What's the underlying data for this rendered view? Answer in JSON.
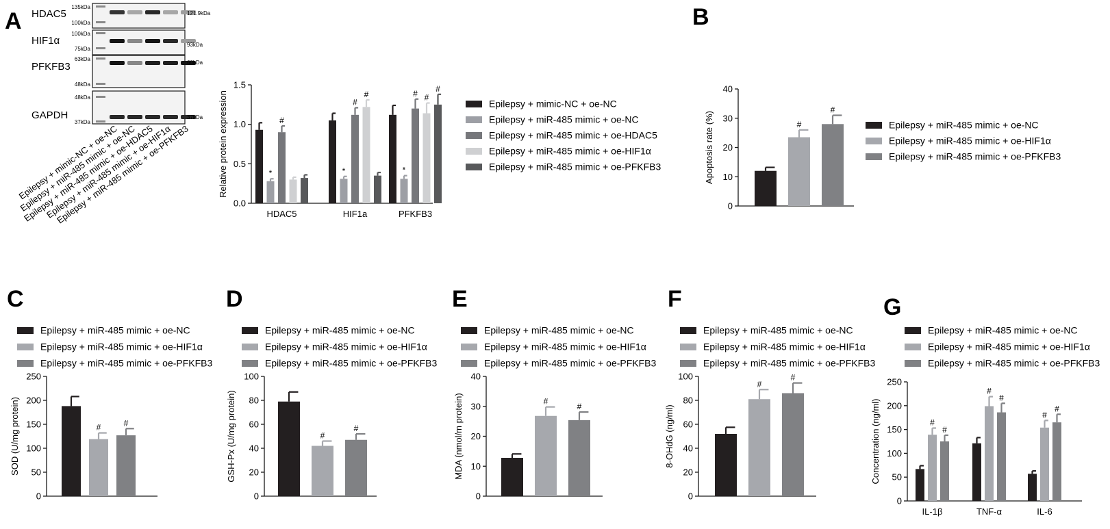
{
  "panel_letters": [
    "A",
    "B",
    "C",
    "D",
    "E",
    "F",
    "G"
  ],
  "colors": {
    "s1": "#231f20",
    "s2": "#9d9fa5",
    "s3": "#76777b",
    "s4": "#cfd0d2",
    "s5": "#58595b",
    "b1": "#231f20",
    "b2": "#a6a8ad",
    "b3": "#808184"
  },
  "western_blot": {
    "proteins": [
      {
        "name": "HDAC5",
        "markers": [
          "135kDa",
          "100kDa"
        ],
        "size": "121.9kDa"
      },
      {
        "name": "HIF1α",
        "markers": [
          "100kDa",
          "75kDa"
        ],
        "size": "93kDa"
      },
      {
        "name": "PFKFB3",
        "markers": [
          "63kDa",
          "48kDa"
        ],
        "size": "60kDa"
      },
      {
        "name": "GAPDH",
        "markers": [
          "48kDa",
          "37kDa"
        ],
        "size": "37kDa"
      }
    ],
    "lanes": [
      "Epilepsy + mimic-NC + oe-NC",
      "Epilepsy + miR-485 mimic + oe-NC",
      "Epilepsy + miR-485 mimic + oe-HDAC5",
      "Epilepsy + miR-485 mimic + oe-HIF1α",
      "Epilepsy + miR-485 mimic + oe-PFKFB3"
    ],
    "band_intensity": {
      "HDAC5": [
        0.85,
        0.3,
        0.9,
        0.3,
        0.35
      ],
      "HIF1α": [
        1.0,
        0.45,
        1.0,
        0.9,
        0.35
      ],
      "PFKFB3": [
        1.0,
        0.45,
        0.95,
        0.95,
        1.0
      ],
      "GAPDH": [
        0.9,
        0.9,
        0.9,
        0.9,
        0.9
      ]
    }
  },
  "chart_data": [
    {
      "id": "A",
      "type": "bar",
      "categories": [
        "HDAC5",
        "HIF1a",
        "PFKFB3"
      ],
      "ylabel": "Relative protein expression",
      "ylim": [
        0,
        1.5
      ],
      "yticks": [
        "0.0",
        "0.5",
        "1.0",
        "1.5"
      ],
      "legend": "right",
      "series": [
        {
          "name": "Epilepsy + mimic-NC + oe-NC",
          "values": [
            0.93,
            1.05,
            1.12
          ],
          "errors": [
            0.09,
            0.09,
            0.12
          ],
          "marks": [
            "",
            "",
            ""
          ]
        },
        {
          "name": "Epilepsy + miR-485 mimic + oe-NC",
          "values": [
            0.28,
            0.31,
            0.31
          ],
          "errors": [
            0.03,
            0.03,
            0.04
          ],
          "marks": [
            "*",
            "*",
            "*"
          ]
        },
        {
          "name": "Epilepsy + miR-485 mimic + oe-HDAC5",
          "values": [
            0.9,
            1.12,
            1.2
          ],
          "errors": [
            0.08,
            0.09,
            0.12
          ],
          "marks": [
            "#",
            "#",
            "#"
          ]
        },
        {
          "name": "Epilepsy + miR-485 mimic + oe-HIF1α",
          "values": [
            0.3,
            1.22,
            1.14
          ],
          "errors": [
            0.03,
            0.09,
            0.13
          ],
          "marks": [
            "",
            "#",
            "#"
          ]
        },
        {
          "name": "Epilepsy + miR-485 mimic + oe-PFKFB3",
          "values": [
            0.32,
            0.35,
            1.25
          ],
          "errors": [
            0.04,
            0.04,
            0.13
          ],
          "marks": [
            "",
            "",
            "#"
          ]
        }
      ]
    },
    {
      "id": "B",
      "type": "bar",
      "ylabel": "Apoptosis rate (%)",
      "ylim": [
        0,
        40
      ],
      "yticks": [
        "0",
        "10",
        "20",
        "30",
        "40"
      ],
      "legend": "right",
      "series": [
        {
          "name": "Epilepsy + miR-485 mimic + oe-NC",
          "values": [
            12
          ],
          "errors": [
            1.2
          ],
          "marks": [
            ""
          ]
        },
        {
          "name": "Epilepsy + miR-485 mimic + oe-HIF1α",
          "values": [
            23.5
          ],
          "errors": [
            2.5
          ],
          "marks": [
            "#"
          ]
        },
        {
          "name": "Epilepsy + miR-485 mimic + oe-PFKFB3",
          "values": [
            28
          ],
          "errors": [
            3
          ],
          "marks": [
            "#"
          ]
        }
      ]
    },
    {
      "id": "C",
      "type": "bar",
      "ylabel": "SOD (U/mg protein)",
      "ylim": [
        0,
        250
      ],
      "yticks": [
        "0",
        "50",
        "100",
        "150",
        "200",
        "250"
      ],
      "legend": "top",
      "series": [
        {
          "name": "Epilepsy + miR-485 mimic + oe-NC",
          "values": [
            188
          ],
          "errors": [
            20
          ],
          "marks": [
            ""
          ]
        },
        {
          "name": "Epilepsy + miR-485 mimic + oe-HIF1α",
          "values": [
            119
          ],
          "errors": [
            13
          ],
          "marks": [
            "#"
          ]
        },
        {
          "name": "Epilepsy + miR-485 mimic + oe-PFKFB3",
          "values": [
            127
          ],
          "errors": [
            14
          ],
          "marks": [
            "#"
          ]
        }
      ]
    },
    {
      "id": "D",
      "type": "bar",
      "ylabel": "GSH-Px (U/mg protein)",
      "ylim": [
        0,
        100
      ],
      "yticks": [
        "0",
        "20",
        "40",
        "60",
        "80",
        "100"
      ],
      "legend": "top",
      "series": [
        {
          "name": "Epilepsy + miR-485 mimic + oe-NC",
          "values": [
            79
          ],
          "errors": [
            8
          ],
          "marks": [
            ""
          ]
        },
        {
          "name": "Epilepsy + miR-485 mimic + oe-HIF1α",
          "values": [
            42
          ],
          "errors": [
            4
          ],
          "marks": [
            "#"
          ]
        },
        {
          "name": "Epilepsy + miR-485 mimic + oe-PFKFB3",
          "values": [
            47
          ],
          "errors": [
            5
          ],
          "marks": [
            "#"
          ]
        }
      ]
    },
    {
      "id": "E",
      "type": "bar",
      "ylabel": "MDA (nmol/m protein)",
      "ylim": [
        0,
        40
      ],
      "yticks": [
        "0",
        "10",
        "20",
        "30",
        "40"
      ],
      "legend": "top",
      "series": [
        {
          "name": "Epilepsy + miR-485 mimic + oe-NC",
          "values": [
            12.8
          ],
          "errors": [
            1.3
          ],
          "marks": [
            ""
          ]
        },
        {
          "name": "Epilepsy + miR-485 mimic + oe-HIF1α",
          "values": [
            26.8
          ],
          "errors": [
            3
          ],
          "marks": [
            "#"
          ]
        },
        {
          "name": "Epilepsy + miR-485 mimic + oe-PFKFB3",
          "values": [
            25.4
          ],
          "errors": [
            2.7
          ],
          "marks": [
            "#"
          ]
        }
      ]
    },
    {
      "id": "F",
      "type": "bar",
      "ylabel": "8-OHdG (ng/ml)",
      "ylim": [
        0,
        100
      ],
      "yticks": [
        "0",
        "20",
        "40",
        "60",
        "80",
        "100"
      ],
      "legend": "top",
      "series": [
        {
          "name": "Epilepsy + miR-485 mimic + oe-NC",
          "values": [
            52
          ],
          "errors": [
            5.5
          ],
          "marks": [
            ""
          ]
        },
        {
          "name": "Epilepsy + miR-485 mimic + oe-HIF1α",
          "values": [
            81
          ],
          "errors": [
            8
          ],
          "marks": [
            "#"
          ]
        },
        {
          "name": "Epilepsy + miR-485 mimic + oe-PFKFB3",
          "values": [
            86
          ],
          "errors": [
            8.5
          ],
          "marks": [
            "#"
          ]
        }
      ]
    },
    {
      "id": "G",
      "type": "bar",
      "categories": [
        "IL-1β",
        "TNF-α",
        "IL-6"
      ],
      "ylabel": "Concentration (ng/ml)",
      "ylim": [
        0,
        250
      ],
      "yticks": [
        "0",
        "50",
        "100",
        "150",
        "200",
        "250"
      ],
      "legend": "top",
      "series": [
        {
          "name": "Epilepsy + miR-485 mimic + oe-NC",
          "values": [
            67,
            121,
            57
          ],
          "errors": [
            7,
            12,
            6
          ],
          "marks": [
            "",
            "",
            ""
          ]
        },
        {
          "name": "Epilepsy + miR-485 mimic + oe-HIF1α",
          "values": [
            139,
            199,
            154
          ],
          "errors": [
            14,
            20,
            15
          ],
          "marks": [
            "#",
            "#",
            "#"
          ]
        },
        {
          "name": "Epilepsy + miR-485 mimic + oe-PFKFB3",
          "values": [
            125,
            186,
            165
          ],
          "errors": [
            13,
            19,
            17
          ],
          "marks": [
            "#",
            "#",
            "#"
          ]
        }
      ]
    }
  ]
}
